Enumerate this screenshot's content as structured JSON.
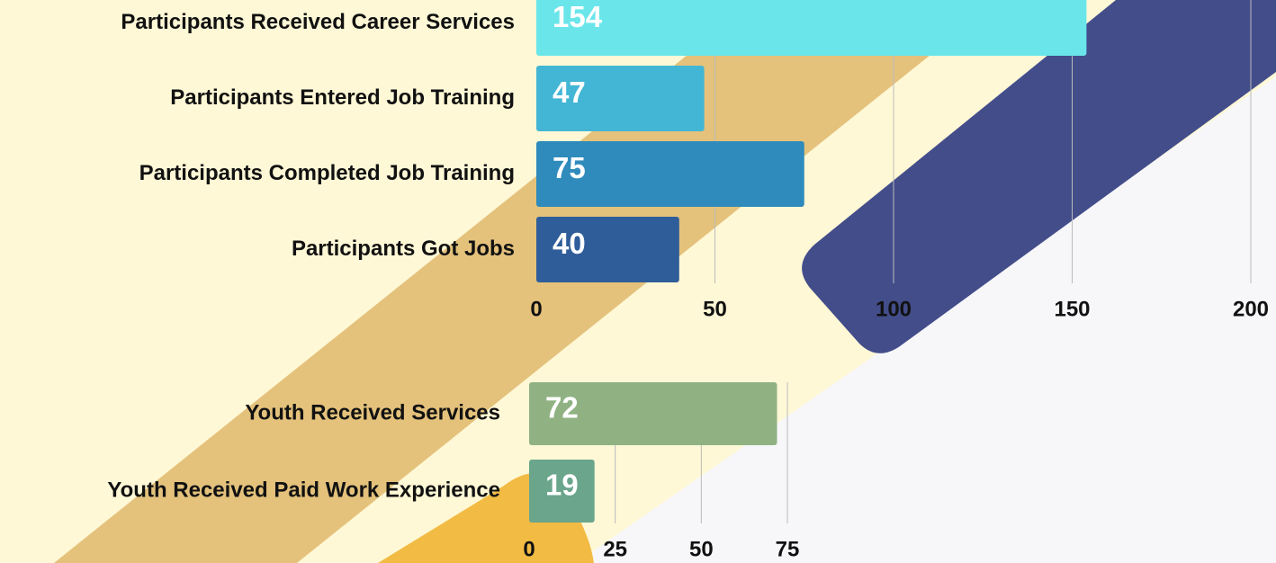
{
  "chart_data": [
    {
      "type": "bar",
      "categories": [
        "Participants Received Career Services",
        "Participants Entered Job Training",
        "Participants Completed Job Training",
        "Participants Got Jobs"
      ],
      "values": [
        154,
        47,
        75,
        40
      ],
      "colors": [
        "#6ae6ea",
        "#43b6d6",
        "#2e8bbc",
        "#2e5d99"
      ],
      "xlim": [
        0,
        200
      ],
      "xticks": [
        0,
        50,
        100,
        150,
        200
      ],
      "grid": true
    },
    {
      "type": "bar",
      "categories": [
        "Youth Received Services",
        "Youth Received Paid Work Experience"
      ],
      "values": [
        72,
        19
      ],
      "colors": [
        "#90b283",
        "#6aa58c"
      ],
      "xlim": [
        0,
        75
      ],
      "xticks": [
        0,
        25,
        50,
        75
      ],
      "grid": true
    }
  ]
}
